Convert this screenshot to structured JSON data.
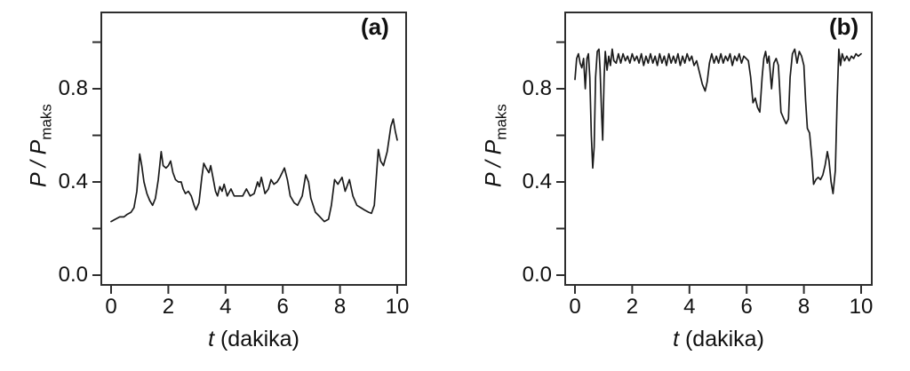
{
  "figure": {
    "background": "#ffffff",
    "line_color": "#1b1b1b",
    "axis_color": "#2e2e2e",
    "text_color": "#111111"
  },
  "chart_data": [
    {
      "type": "line",
      "panel_label": "(a)",
      "xlabel": "t (dakika)",
      "ylabel": "P/Pmaks",
      "xlabel_italic": "t",
      "xlabel_rest": " (dakika)",
      "ylabel_italic": "P / P",
      "ylabel_subscript": "maks",
      "xlim": [
        -0.4,
        10.4
      ],
      "ylim": [
        -0.05,
        1.13
      ],
      "grid": false,
      "legend": false,
      "x_ticks": [
        {
          "v": 0,
          "label": "0"
        },
        {
          "v": 2,
          "label": "2"
        },
        {
          "v": 4,
          "label": "4"
        },
        {
          "v": 6,
          "label": "6"
        },
        {
          "v": 8,
          "label": "8"
        },
        {
          "v": 10,
          "label": "10"
        }
      ],
      "y_ticks": [
        {
          "v": 0.0,
          "label": "0.0"
        },
        {
          "v": 0.2,
          "label": ""
        },
        {
          "v": 0.4,
          "label": "0.4"
        },
        {
          "v": 0.6,
          "label": ""
        },
        {
          "v": 0.8,
          "label": "0.8"
        },
        {
          "v": 1.0,
          "label": ""
        }
      ],
      "series": [
        {
          "points": [
            [
              0,
              0.23
            ],
            [
              0.15,
              0.24
            ],
            [
              0.3,
              0.25
            ],
            [
              0.45,
              0.25
            ],
            [
              0.55,
              0.26
            ],
            [
              0.7,
              0.27
            ],
            [
              0.8,
              0.29
            ],
            [
              0.9,
              0.36
            ],
            [
              1.0,
              0.52
            ],
            [
              1.07,
              0.47
            ],
            [
              1.15,
              0.4
            ],
            [
              1.25,
              0.35
            ],
            [
              1.35,
              0.32
            ],
            [
              1.45,
              0.3
            ],
            [
              1.55,
              0.33
            ],
            [
              1.65,
              0.41
            ],
            [
              1.75,
              0.53
            ],
            [
              1.82,
              0.47
            ],
            [
              1.92,
              0.46
            ],
            [
              2.0,
              0.47
            ],
            [
              2.08,
              0.49
            ],
            [
              2.16,
              0.44
            ],
            [
              2.25,
              0.41
            ],
            [
              2.35,
              0.4
            ],
            [
              2.45,
              0.4
            ],
            [
              2.52,
              0.37
            ],
            [
              2.6,
              0.35
            ],
            [
              2.7,
              0.36
            ],
            [
              2.8,
              0.34
            ],
            [
              2.9,
              0.3
            ],
            [
              2.97,
              0.28
            ],
            [
              3.07,
              0.31
            ],
            [
              3.17,
              0.42
            ],
            [
              3.24,
              0.48
            ],
            [
              3.32,
              0.46
            ],
            [
              3.42,
              0.44
            ],
            [
              3.48,
              0.47
            ],
            [
              3.56,
              0.42
            ],
            [
              3.65,
              0.36
            ],
            [
              3.72,
              0.34
            ],
            [
              3.8,
              0.38
            ],
            [
              3.88,
              0.36
            ],
            [
              3.95,
              0.39
            ],
            [
              4.06,
              0.34
            ],
            [
              4.19,
              0.37
            ],
            [
              4.3,
              0.34
            ],
            [
              4.45,
              0.34
            ],
            [
              4.6,
              0.34
            ],
            [
              4.73,
              0.37
            ],
            [
              4.86,
              0.34
            ],
            [
              5.0,
              0.35
            ],
            [
              5.12,
              0.4
            ],
            [
              5.18,
              0.38
            ],
            [
              5.25,
              0.42
            ],
            [
              5.38,
              0.35
            ],
            [
              5.5,
              0.37
            ],
            [
              5.59,
              0.41
            ],
            [
              5.69,
              0.39
            ],
            [
              5.8,
              0.4
            ],
            [
              5.9,
              0.42
            ],
            [
              6.06,
              0.46
            ],
            [
              6.16,
              0.41
            ],
            [
              6.26,
              0.34
            ],
            [
              6.4,
              0.31
            ],
            [
              6.52,
              0.3
            ],
            [
              6.68,
              0.34
            ],
            [
              6.8,
              0.43
            ],
            [
              6.9,
              0.4
            ],
            [
              6.98,
              0.33
            ],
            [
              7.14,
              0.27
            ],
            [
              7.3,
              0.25
            ],
            [
              7.45,
              0.23
            ],
            [
              7.6,
              0.24
            ],
            [
              7.7,
              0.3
            ],
            [
              7.81,
              0.41
            ],
            [
              7.93,
              0.39
            ],
            [
              8.07,
              0.42
            ],
            [
              8.18,
              0.36
            ],
            [
              8.33,
              0.41
            ],
            [
              8.45,
              0.34
            ],
            [
              8.59,
              0.3
            ],
            [
              8.72,
              0.29
            ],
            [
              8.85,
              0.28
            ],
            [
              9.0,
              0.27
            ],
            [
              9.1,
              0.265
            ],
            [
              9.2,
              0.3
            ],
            [
              9.34,
              0.54
            ],
            [
              9.42,
              0.49
            ],
            [
              9.52,
              0.47
            ],
            [
              9.65,
              0.53
            ],
            [
              9.78,
              0.64
            ],
            [
              9.86,
              0.67
            ],
            [
              9.93,
              0.62
            ],
            [
              10,
              0.58
            ]
          ]
        }
      ]
    },
    {
      "type": "line",
      "panel_label": "(b)",
      "xlabel": "t (dakika)",
      "ylabel": "P/Pmaks",
      "xlabel_italic": "t",
      "xlabel_rest": " (dakika)",
      "ylabel_italic": "P / P",
      "ylabel_subscript": "maks",
      "xlim": [
        -0.4,
        10.4
      ],
      "ylim": [
        -0.05,
        1.13
      ],
      "grid": false,
      "legend": false,
      "x_ticks": [
        {
          "v": 0,
          "label": "0"
        },
        {
          "v": 2,
          "label": "2"
        },
        {
          "v": 4,
          "label": "4"
        },
        {
          "v": 6,
          "label": "6"
        },
        {
          "v": 8,
          "label": "8"
        },
        {
          "v": 10,
          "label": "10"
        }
      ],
      "y_ticks": [
        {
          "v": 0.0,
          "label": "0.0"
        },
        {
          "v": 0.2,
          "label": ""
        },
        {
          "v": 0.4,
          "label": "0.4"
        },
        {
          "v": 0.6,
          "label": ""
        },
        {
          "v": 0.8,
          "label": "0.8"
        },
        {
          "v": 1.0,
          "label": ""
        }
      ],
      "series": [
        {
          "points": [
            [
              0,
              0.84
            ],
            [
              0.06,
              0.93
            ],
            [
              0.12,
              0.95
            ],
            [
              0.18,
              0.91
            ],
            [
              0.24,
              0.89
            ],
            [
              0.3,
              0.93
            ],
            [
              0.36,
              0.8
            ],
            [
              0.42,
              0.93
            ],
            [
              0.47,
              0.95
            ],
            [
              0.52,
              0.85
            ],
            [
              0.57,
              0.6
            ],
            [
              0.62,
              0.46
            ],
            [
              0.67,
              0.55
            ],
            [
              0.72,
              0.85
            ],
            [
              0.78,
              0.96
            ],
            [
              0.84,
              0.97
            ],
            [
              0.88,
              0.88
            ],
            [
              0.93,
              0.7
            ],
            [
              0.97,
              0.58
            ],
            [
              1.02,
              0.85
            ],
            [
              1.06,
              0.96
            ],
            [
              1.12,
              0.88
            ],
            [
              1.18,
              0.94
            ],
            [
              1.24,
              0.9
            ],
            [
              1.3,
              0.97
            ],
            [
              1.36,
              0.92
            ],
            [
              1.44,
              0.91
            ],
            [
              1.52,
              0.95
            ],
            [
              1.6,
              0.91
            ],
            [
              1.68,
              0.95
            ],
            [
              1.76,
              0.92
            ],
            [
              1.84,
              0.94
            ],
            [
              1.92,
              0.91
            ],
            [
              2.0,
              0.95
            ],
            [
              2.08,
              0.92
            ],
            [
              2.16,
              0.94
            ],
            [
              2.24,
              0.91
            ],
            [
              2.32,
              0.95
            ],
            [
              2.4,
              0.9
            ],
            [
              2.48,
              0.94
            ],
            [
              2.56,
              0.91
            ],
            [
              2.64,
              0.95
            ],
            [
              2.72,
              0.91
            ],
            [
              2.8,
              0.94
            ],
            [
              2.88,
              0.9
            ],
            [
              2.96,
              0.95
            ],
            [
              3.04,
              0.91
            ],
            [
              3.12,
              0.94
            ],
            [
              3.2,
              0.9
            ],
            [
              3.28,
              0.95
            ],
            [
              3.36,
              0.91
            ],
            [
              3.44,
              0.94
            ],
            [
              3.52,
              0.91
            ],
            [
              3.6,
              0.95
            ],
            [
              3.68,
              0.9
            ],
            [
              3.76,
              0.94
            ],
            [
              3.84,
              0.91
            ],
            [
              3.92,
              0.95
            ],
            [
              4.0,
              0.92
            ],
            [
              4.08,
              0.94
            ],
            [
              4.16,
              0.9
            ],
            [
              4.25,
              0.92
            ],
            [
              4.35,
              0.87
            ],
            [
              4.45,
              0.82
            ],
            [
              4.55,
              0.79
            ],
            [
              4.62,
              0.83
            ],
            [
              4.7,
              0.91
            ],
            [
              4.78,
              0.95
            ],
            [
              4.86,
              0.91
            ],
            [
              4.94,
              0.94
            ],
            [
              5.02,
              0.91
            ],
            [
              5.1,
              0.95
            ],
            [
              5.18,
              0.91
            ],
            [
              5.26,
              0.94
            ],
            [
              5.34,
              0.92
            ],
            [
              5.42,
              0.95
            ],
            [
              5.5,
              0.9
            ],
            [
              5.58,
              0.94
            ],
            [
              5.66,
              0.92
            ],
            [
              5.74,
              0.95
            ],
            [
              5.82,
              0.91
            ],
            [
              5.9,
              0.94
            ],
            [
              5.98,
              0.93
            ],
            [
              6.06,
              0.92
            ],
            [
              6.14,
              0.85
            ],
            [
              6.22,
              0.74
            ],
            [
              6.3,
              0.76
            ],
            [
              6.38,
              0.72
            ],
            [
              6.46,
              0.7
            ],
            [
              6.54,
              0.85
            ],
            [
              6.6,
              0.93
            ],
            [
              6.66,
              0.96
            ],
            [
              6.72,
              0.91
            ],
            [
              6.78,
              0.94
            ],
            [
              6.87,
              0.8
            ],
            [
              6.95,
              0.91
            ],
            [
              7.03,
              0.93
            ],
            [
              7.11,
              0.9
            ],
            [
              7.2,
              0.7
            ],
            [
              7.3,
              0.67
            ],
            [
              7.38,
              0.65
            ],
            [
              7.46,
              0.67
            ],
            [
              7.52,
              0.85
            ],
            [
              7.6,
              0.95
            ],
            [
              7.68,
              0.97
            ],
            [
              7.76,
              0.91
            ],
            [
              7.84,
              0.96
            ],
            [
              7.92,
              0.94
            ],
            [
              8.0,
              0.9
            ],
            [
              8.06,
              0.75
            ],
            [
              8.12,
              0.63
            ],
            [
              8.2,
              0.61
            ],
            [
              8.28,
              0.5
            ],
            [
              8.34,
              0.39
            ],
            [
              8.42,
              0.41
            ],
            [
              8.5,
              0.42
            ],
            [
              8.58,
              0.41
            ],
            [
              8.66,
              0.43
            ],
            [
              8.74,
              0.47
            ],
            [
              8.82,
              0.53
            ],
            [
              8.88,
              0.49
            ],
            [
              8.95,
              0.4
            ],
            [
              9.02,
              0.35
            ],
            [
              9.1,
              0.45
            ],
            [
              9.16,
              0.75
            ],
            [
              9.22,
              0.97
            ],
            [
              9.28,
              0.9
            ],
            [
              9.34,
              0.95
            ],
            [
              9.42,
              0.92
            ],
            [
              9.5,
              0.94
            ],
            [
              9.58,
              0.92
            ],
            [
              9.66,
              0.94
            ],
            [
              9.74,
              0.93
            ],
            [
              9.82,
              0.95
            ],
            [
              9.9,
              0.94
            ],
            [
              10,
              0.95
            ]
          ]
        }
      ]
    }
  ]
}
